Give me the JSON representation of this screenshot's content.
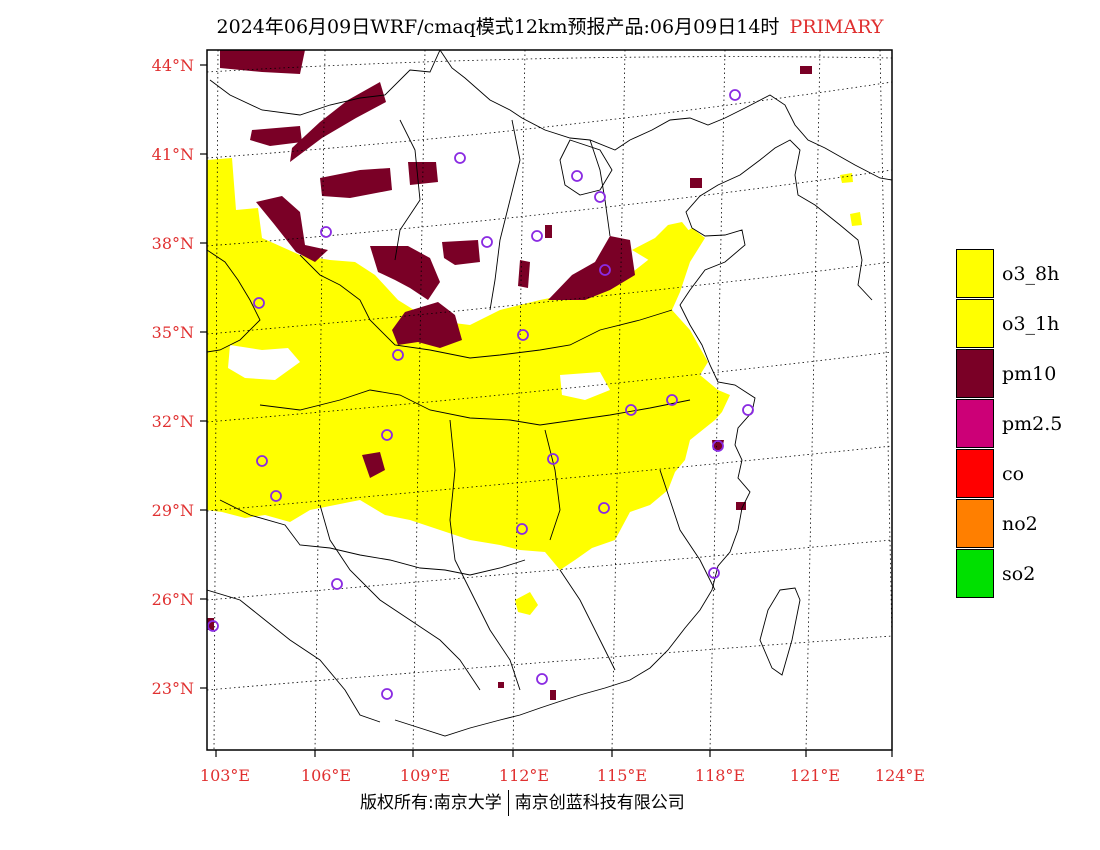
{
  "title": {
    "main": "2024年06月09日WRF/cmaq模式12km预报产品:06月09日14时",
    "tag": "PRIMARY",
    "tag_color": "#e03030"
  },
  "map": {
    "lon_labels": [
      "103°E",
      "106°E",
      "109°E",
      "112°E",
      "115°E",
      "118°E",
      "121°E",
      "124°E"
    ],
    "lat_labels": [
      "44°N",
      "41°N",
      "38°N",
      "35°N",
      "32°N",
      "29°N",
      "26°N",
      "23°N"
    ],
    "label_color": "#e03030"
  },
  "legend": [
    {
      "label": "o3_8h",
      "color": "#ffff00"
    },
    {
      "label": "o3_1h",
      "color": "#ffff00"
    },
    {
      "label": "pm10",
      "color": "#7a0026"
    },
    {
      "label": "pm2.5",
      "color": "#cc0077"
    },
    {
      "label": "co",
      "color": "#ff0000"
    },
    {
      "label": "no2",
      "color": "#ff7f00"
    },
    {
      "label": "so2",
      "color": "#00e000"
    }
  ],
  "footer": {
    "left": "版权所有:南京大学",
    "right": "南京创蓝科技有限公司"
  }
}
